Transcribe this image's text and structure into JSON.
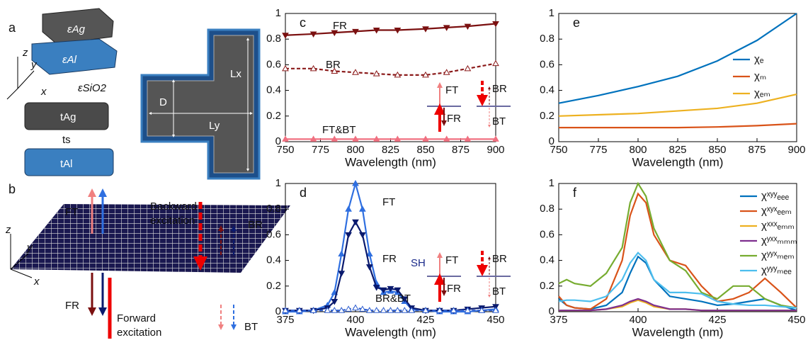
{
  "chart_data": [
    {
      "type": "line",
      "panel_label": "c",
      "xlabel": "Wavelength (nm)",
      "xlim": [
        750,
        900
      ],
      "xticks": [
        750,
        775,
        800,
        825,
        850,
        875,
        900
      ],
      "ylim": [
        0,
        1
      ],
      "yticks": [
        0,
        0.2,
        0.4,
        0.6,
        0.8,
        1
      ],
      "x": [
        750,
        770,
        785,
        800,
        815,
        830,
        850,
        865,
        880,
        900
      ],
      "series": [
        {
          "name": "FR",
          "color": "#7b1010",
          "marker": "v",
          "values": [
            0.83,
            0.84,
            0.85,
            0.86,
            0.87,
            0.87,
            0.88,
            0.89,
            0.9,
            0.92
          ]
        },
        {
          "name": "BR",
          "color": "#8b1a1a",
          "dash": true,
          "marker": "^",
          "marker_open": true,
          "values": [
            0.57,
            0.57,
            0.55,
            0.54,
            0.53,
            0.52,
            0.52,
            0.54,
            0.57,
            0.61
          ]
        },
        {
          "name": "FT&BT",
          "color": "#f07080",
          "marker": "^",
          "values": [
            0.02,
            0.02,
            0.02,
            0.02,
            0.02,
            0.02,
            0.02,
            0.02,
            0.02,
            0.02
          ]
        }
      ],
      "inset_labels": [
        "FT",
        "FR",
        "BR",
        "BT"
      ]
    },
    {
      "type": "line",
      "panel_label": "d",
      "xlabel": "Wavelength (nm)",
      "xlim": [
        375,
        450
      ],
      "xticks": [
        375,
        400,
        425,
        450
      ],
      "ylim": [
        0,
        1
      ],
      "yticks": [
        0,
        0.2,
        0.4,
        0.6,
        0.8,
        1
      ],
      "x": [
        375,
        380,
        385,
        390,
        392.5,
        395,
        397.5,
        400,
        402.5,
        405,
        407.5,
        410,
        412.5,
        415,
        417.5,
        420,
        425,
        430,
        435,
        440,
        445,
        450
      ],
      "series": [
        {
          "name": "FT",
          "color": "#2f6fe0",
          "marker": "^",
          "values": [
            0,
            0,
            0.01,
            0.05,
            0.15,
            0.45,
            0.8,
            1,
            0.8,
            0.45,
            0.22,
            0.15,
            0.16,
            0.15,
            0.08,
            0.02,
            0.01,
            0,
            0,
            0,
            0.01,
            0.02
          ]
        },
        {
          "name": "FR",
          "color": "#0a1a6e",
          "marker": "v",
          "values": [
            0.01,
            0.01,
            0.01,
            0.03,
            0.08,
            0.3,
            0.6,
            0.7,
            0.6,
            0.35,
            0.19,
            0.17,
            0.18,
            0.17,
            0.1,
            0.03,
            0.01,
            0.01,
            0.01,
            0.02,
            0.03,
            0.04
          ]
        },
        {
          "name": "BR&BT",
          "color": "#3060d0",
          "dash": true,
          "marker": "^",
          "marker_open": true,
          "values": [
            0.01,
            0.01,
            0.01,
            0.01,
            0.01,
            0.01,
            0.02,
            0.03,
            0.02,
            0.01,
            0.01,
            0.01,
            0.01,
            0.01,
            0.01,
            0.01,
            0.01,
            0.01,
            0.01,
            0.01,
            0.01,
            0.01
          ]
        }
      ],
      "inset_labels": [
        "SH",
        "FT",
        "FR",
        "BR",
        "BT"
      ]
    },
    {
      "type": "line",
      "panel_label": "e",
      "xlabel": "Wavelength (nm)",
      "legend": "right",
      "xlim": [
        750,
        900
      ],
      "xticks": [
        750,
        775,
        800,
        825,
        850,
        875,
        900
      ],
      "ylim": [
        0,
        1
      ],
      "yticks": [
        0,
        0.2,
        0.4,
        0.6,
        0.8,
        1
      ],
      "x": [
        750,
        775,
        800,
        825,
        850,
        875,
        900
      ],
      "series": [
        {
          "name": "χₑ",
          "color": "#0072bd",
          "values": [
            0.3,
            0.36,
            0.43,
            0.51,
            0.63,
            0.79,
            1
          ]
        },
        {
          "name": "χₘ",
          "color": "#d95319",
          "values": [
            0.11,
            0.11,
            0.11,
            0.11,
            0.115,
            0.125,
            0.14
          ]
        },
        {
          "name": "χₑₘ",
          "color": "#edb120",
          "values": [
            0.2,
            0.21,
            0.22,
            0.24,
            0.26,
            0.3,
            0.37
          ]
        }
      ]
    },
    {
      "type": "line",
      "panel_label": "f",
      "xlabel": "Wavelength (nm)",
      "legend": "upper right",
      "xlim": [
        375,
        450
      ],
      "xticks": [
        375,
        400,
        425,
        450
      ],
      "ylim": [
        0,
        1
      ],
      "yticks": [
        0,
        0.2,
        0.4,
        0.6,
        0.8,
        1
      ],
      "x": [
        375,
        377.5,
        380,
        385,
        390,
        395,
        397.5,
        400,
        402.5,
        405,
        410,
        415,
        420,
        425,
        430,
        435,
        440,
        445,
        450
      ],
      "series": [
        {
          "name": "χˣʸʸₑₑₑ",
          "color": "#0072bd",
          "values": [
            0.1,
            0.05,
            0.03,
            0.02,
            0.05,
            0.15,
            0.3,
            0.43,
            0.38,
            0.25,
            0.12,
            0.1,
            0.08,
            0.05,
            0.06,
            0.08,
            0.1,
            0.05,
            0.01
          ]
        },
        {
          "name": "χˣʸˣₑₑₘ",
          "color": "#d95319",
          "values": [
            0.12,
            0.05,
            0.03,
            0.02,
            0.1,
            0.4,
            0.75,
            0.92,
            0.85,
            0.6,
            0.4,
            0.36,
            0.2,
            0.08,
            0.1,
            0.15,
            0.26,
            0.15,
            0.03
          ]
        },
        {
          "name": "χˣˣˣₑₘₘ",
          "color": "#edb120",
          "values": [
            0.01,
            0.01,
            0.01,
            0.01,
            0.02,
            0.04,
            0.07,
            0.09,
            0.07,
            0.04,
            0.02,
            0.02,
            0.01,
            0.01,
            0.01,
            0.01,
            0.01,
            0.01,
            0.01
          ]
        },
        {
          "name": "χʸˣˣₘₘₘ",
          "color": "#7e2f8e",
          "values": [
            0.01,
            0.01,
            0.01,
            0.01,
            0.02,
            0.05,
            0.08,
            0.1,
            0.08,
            0.05,
            0.02,
            0.02,
            0.01,
            0.01,
            0.01,
            0.01,
            0.01,
            0.01,
            0.01
          ]
        },
        {
          "name": "χʸʸˣₘₑₘ",
          "color": "#77ac30",
          "values": [
            0.22,
            0.25,
            0.22,
            0.2,
            0.3,
            0.5,
            0.85,
            1,
            0.9,
            0.65,
            0.4,
            0.32,
            0.15,
            0.1,
            0.2,
            0.2,
            0.1,
            0.05,
            0.03
          ]
        },
        {
          "name": "χʸʸʸₘₑₑ",
          "color": "#4dbeee",
          "values": [
            0.08,
            0.09,
            0.09,
            0.08,
            0.12,
            0.25,
            0.38,
            0.46,
            0.4,
            0.25,
            0.15,
            0.15,
            0.14,
            0.08,
            0.06,
            0.05,
            0.05,
            0.04,
            0.03
          ]
        }
      ]
    }
  ],
  "illustrations": {
    "a": {
      "label": "a",
      "axes": [
        "z",
        "y",
        "x"
      ],
      "materials": [
        "εAg",
        "εAl",
        "εSiO2"
      ],
      "thickness": [
        "tAg",
        "ts",
        "tAl"
      ],
      "dimensions": [
        "D",
        "Lx",
        "Ly"
      ]
    },
    "b": {
      "label": "b",
      "axes": [
        "z",
        "y",
        "x"
      ],
      "labels": [
        "FT",
        "FR",
        "Backward",
        "excitation",
        "Forward",
        "excitation",
        "BR",
        "BT"
      ]
    }
  }
}
